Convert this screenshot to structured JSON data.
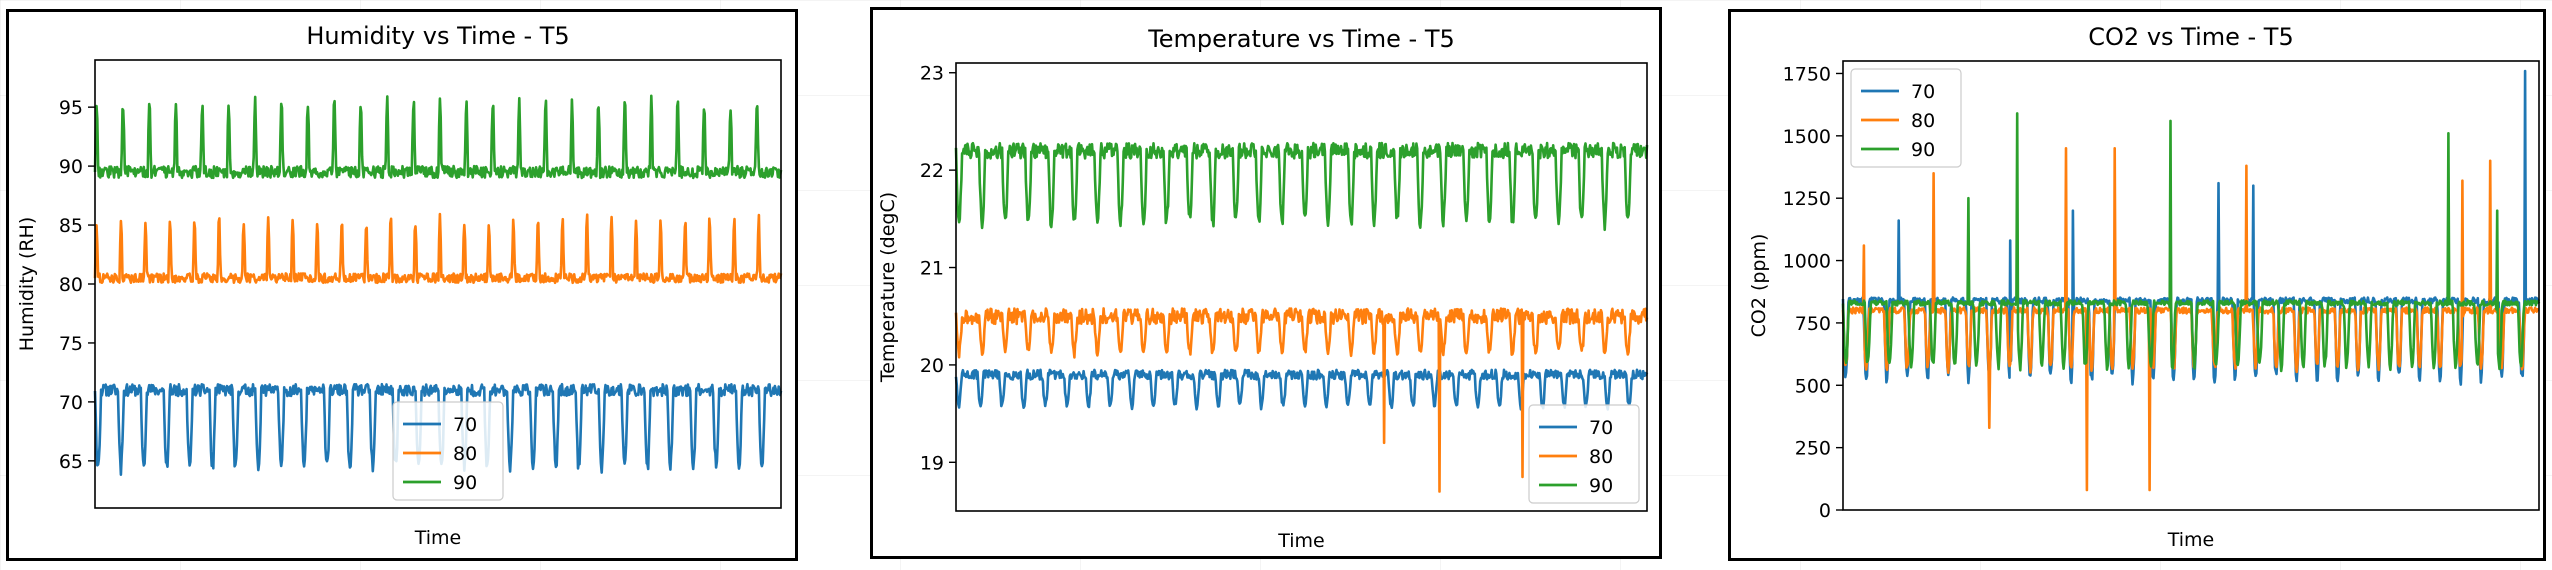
{
  "chart_data": [
    {
      "type": "line",
      "title": "Humidity vs Time - T5",
      "xlabel": "Time",
      "ylabel": "Humidity (RH)",
      "ylim": [
        61,
        99
      ],
      "yticks": [
        65,
        70,
        75,
        80,
        85,
        90,
        95
      ],
      "legend": "lower-center",
      "series": [
        {
          "name": "70",
          "color": "#1f77b4",
          "baseline": 71,
          "dip": 64,
          "cycles": 30,
          "noise": 0.5
        },
        {
          "name": "80",
          "color": "#ff7f0e",
          "baseline": 80.5,
          "spike": 86,
          "cycles": 28,
          "noise": 0.4
        },
        {
          "name": "90",
          "color": "#2ca02c",
          "baseline": 89.5,
          "spike": 96,
          "cycles": 26,
          "noise": 0.5
        }
      ]
    },
    {
      "type": "line",
      "title": "Temperature vs Time - T5",
      "xlabel": "Time",
      "ylabel": "Temperature (degC)",
      "ylim": [
        18.5,
        23.1
      ],
      "yticks": [
        19,
        20,
        21,
        22,
        23
      ],
      "legend": "lower-right",
      "series": [
        {
          "name": "70",
          "color": "#1f77b4",
          "baseline": 19.9,
          "dip": 19.55,
          "cycles": 32,
          "noise": 0.05
        },
        {
          "name": "80",
          "color": "#ff7f0e",
          "baseline": 20.5,
          "dip": 20.1,
          "cycles": 30,
          "noise": 0.08
        },
        {
          "name": "90",
          "color": "#2ca02c",
          "baseline": 22.2,
          "dip": 21.4,
          "cycles": 30,
          "noise": 0.08
        }
      ]
    },
    {
      "type": "line",
      "title": "CO2 vs Time - T5",
      "xlabel": "Time",
      "ylabel": "CO2 (ppm)",
      "ylim": [
        0,
        1800
      ],
      "yticks": [
        0,
        250,
        500,
        750,
        1000,
        1250,
        1500,
        1750
      ],
      "legend": "upper-left",
      "series": [
        {
          "name": "70",
          "color": "#1f77b4",
          "baseline": 840,
          "dip": 500,
          "cycles": 34,
          "noise": 12,
          "peaks": [
            [
              0.08,
              1160
            ],
            [
              0.24,
              1080
            ],
            [
              0.33,
              1200
            ],
            [
              0.54,
              1310
            ],
            [
              0.59,
              1300
            ],
            [
              0.98,
              1760
            ]
          ]
        },
        {
          "name": "80",
          "color": "#ff7f0e",
          "baseline": 800,
          "dip": 550,
          "cycles": 34,
          "noise": 12,
          "peaks": [
            [
              0.03,
              1060
            ],
            [
              0.13,
              1350
            ],
            [
              0.32,
              1450
            ],
            [
              0.39,
              1450
            ],
            [
              0.58,
              1380
            ],
            [
              0.93,
              1400
            ],
            [
              0.89,
              1320
            ]
          ]
        },
        {
          "name": "90",
          "color": "#2ca02c",
          "baseline": 830,
          "dip": 560,
          "cycles": 32,
          "noise": 10,
          "peaks": [
            [
              0.18,
              1250
            ],
            [
              0.25,
              1590
            ],
            [
              0.47,
              1560
            ],
            [
              0.87,
              1510
            ],
            [
              0.94,
              1200
            ]
          ]
        }
      ]
    }
  ]
}
